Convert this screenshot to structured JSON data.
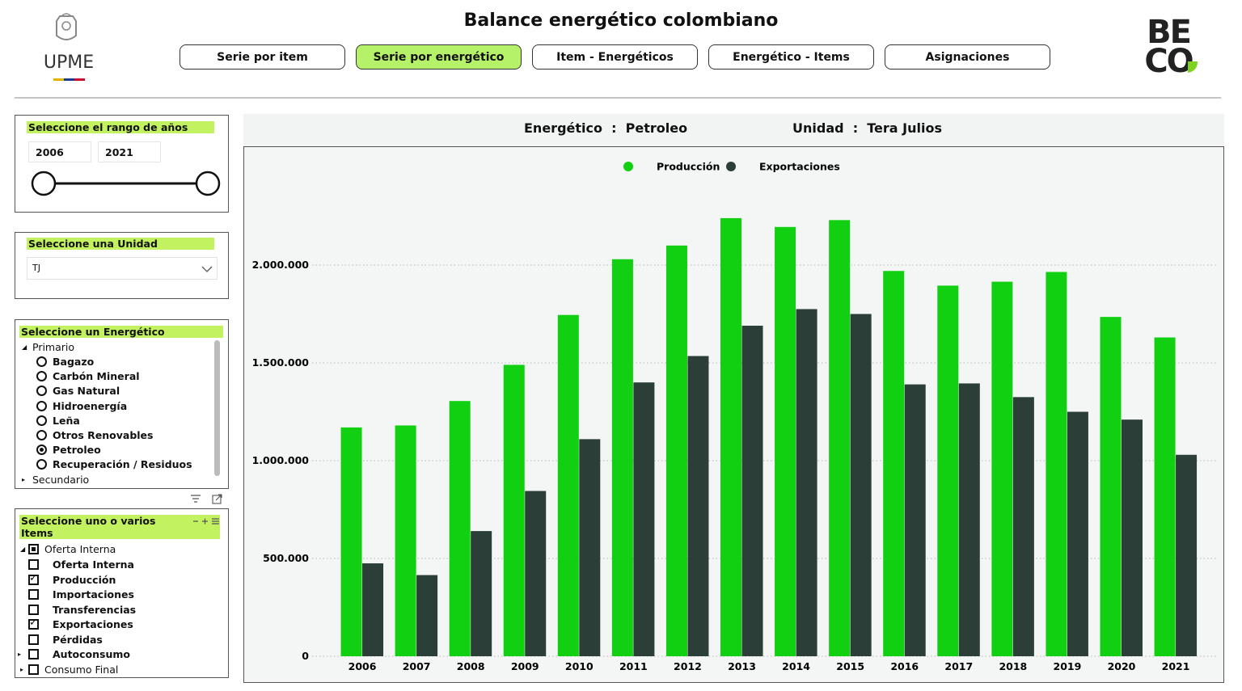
{
  "header": {
    "logo_text": "UPME",
    "title": "Balance energético colombiano",
    "brand": [
      "BE",
      "CO"
    ]
  },
  "nav": [
    {
      "label": "Serie por item"
    },
    {
      "label": "Serie por energético",
      "active": true
    },
    {
      "label": "Item - Energéticos"
    },
    {
      "label": "Energético - Items"
    },
    {
      "label": "Asignaciones"
    }
  ],
  "filters": {
    "years": {
      "title": "Seleccione el rango de años",
      "start": "2006",
      "end": "2021"
    },
    "unit": {
      "title": "Seleccione una Unidad",
      "value": "TJ"
    },
    "energetico": {
      "title": "Seleccione un Energético",
      "groups": [
        {
          "label": "Primario",
          "expanded": true,
          "options": [
            {
              "label": "Bagazo"
            },
            {
              "label": "Carbón Mineral"
            },
            {
              "label": "Gas Natural"
            },
            {
              "label": "Hidroenergía"
            },
            {
              "label": "Leña"
            },
            {
              "label": "Otros Renovables"
            },
            {
              "label": "Petroleo",
              "selected": true
            },
            {
              "label": "Recuperación / Residuos"
            }
          ]
        },
        {
          "label": "Secundario",
          "expanded": false
        }
      ]
    },
    "items": {
      "title": "Seleccione uno o varios Items",
      "groups": [
        {
          "label": "Oferta Interna",
          "state": "partial",
          "expanded": true,
          "options": [
            {
              "label": "Oferta Interna"
            },
            {
              "label": "Producción",
              "checked": true
            },
            {
              "label": "Importaciones"
            },
            {
              "label": "Transferencias"
            },
            {
              "label": "Exportaciones",
              "checked": true
            },
            {
              "label": "Pérdidas"
            },
            {
              "label": "Autoconsumo",
              "expandable": true
            }
          ]
        },
        {
          "label": "Consumo Final",
          "expanded": false
        }
      ]
    }
  },
  "chart_header": {
    "energetico": "Energético  :  Petroleo",
    "unidad": "Unidad  :  Tera Julios"
  },
  "chart_data": {
    "type": "bar",
    "categories": [
      "2006",
      "2007",
      "2008",
      "2009",
      "2010",
      "2011",
      "2012",
      "2013",
      "2014",
      "2015",
      "2016",
      "2017",
      "2018",
      "2019",
      "2020",
      "2021"
    ],
    "series": [
      {
        "name": "Producción",
        "color": "#11d011",
        "values": [
          1170000,
          1180000,
          1305000,
          1490000,
          1745000,
          2030000,
          2100000,
          2240000,
          2195000,
          2230000,
          1970000,
          1895000,
          1915000,
          1965000,
          1735000,
          1630000
        ]
      },
      {
        "name": "Exportaciones",
        "color": "#2b3f38",
        "values": [
          475000,
          415000,
          640000,
          845000,
          1110000,
          1400000,
          1535000,
          1690000,
          1775000,
          1750000,
          1390000,
          1395000,
          1325000,
          1250000,
          1210000,
          1030000
        ]
      }
    ],
    "ylim": [
      0,
      2500000
    ],
    "yticks": [
      0,
      {
        "value": 500000,
        "label": "500.000"
      },
      {
        "value": 1000000,
        "label": "1.000.000"
      },
      {
        "value": 1500000,
        "label": "1.500.000"
      },
      {
        "value": 2000000,
        "label": "2.000.000"
      }
    ],
    "grid": true,
    "legend": "top"
  }
}
